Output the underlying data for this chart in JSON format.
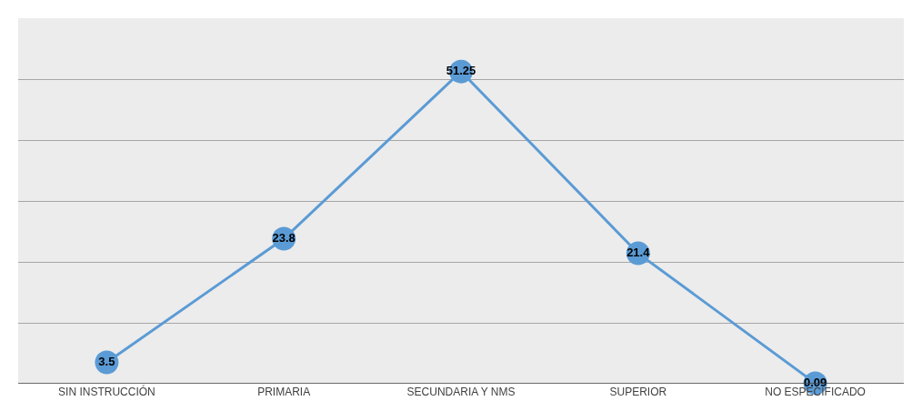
{
  "chart_data": {
    "type": "line",
    "categories": [
      "SIN INSTRUCCIÓN",
      "PRIMARIA",
      "SECUNDARIA Y NMS",
      "SUPERIOR",
      "NO ESPECIFICADO"
    ],
    "values": [
      3.5,
      23.8,
      51.25,
      21.4,
      0.09
    ],
    "color": "#5b9bd5",
    "ylim": [
      0,
      60
    ],
    "yticks": [
      {
        "value": 0,
        "label": null
      },
      {
        "value": 10,
        "label": null
      },
      {
        "value": 20,
        "label": null
      },
      {
        "value": 30,
        "label": null
      },
      {
        "value": 40,
        "label": null
      },
      {
        "value": 50,
        "label": null
      },
      {
        "value": 60,
        "label": null
      }
    ],
    "tick_labels": "x",
    "grid": "y",
    "marker": "circle",
    "line_style": "solid",
    "data_labels": true,
    "legend": false
  }
}
